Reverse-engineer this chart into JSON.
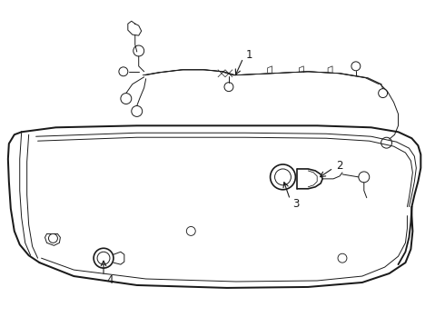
{
  "bg_color": "#ffffff",
  "line_color": "#1a1a1a",
  "lw_main": 1.2,
  "lw_thin": 0.7,
  "label_fontsize": 8.5,
  "labels": [
    "1",
    "2",
    "3",
    "4"
  ],
  "fig_w": 4.9,
  "fig_h": 3.6,
  "dpi": 100
}
